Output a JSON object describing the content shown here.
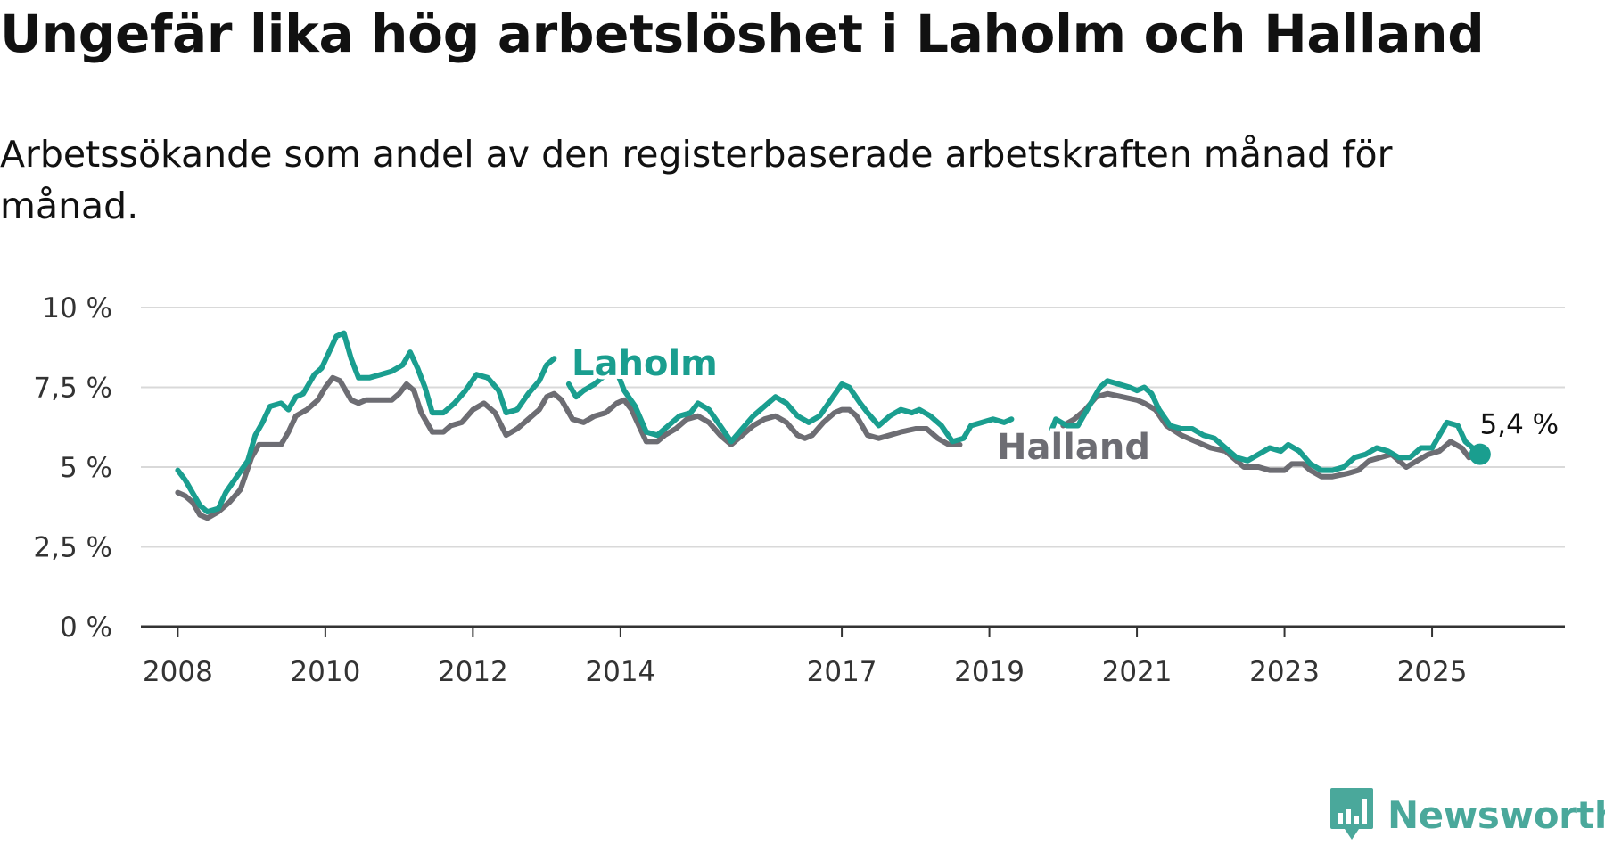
{
  "title": "Ungefär lika hög arbetslöshet i Laholm och Halland",
  "subtitle": "Arbetssökande som andel av den registerbaserade arbetskraften månad för månad.",
  "brand": {
    "name": "Newsworthy",
    "icon": "newsworthy-logo-icon",
    "color": "#4aa89b"
  },
  "chart_data": {
    "type": "line",
    "title": "Ungefär lika hög arbetslöshet i Laholm och Halland",
    "xlabel": "",
    "ylabel": "",
    "ylim": [
      0,
      10
    ],
    "xlim": [
      2007.5,
      2026.8
    ],
    "grid": true,
    "y_ticks": [
      {
        "value": 0,
        "label": "0 %"
      },
      {
        "value": 2.5,
        "label": "2,5 %"
      },
      {
        "value": 5,
        "label": "5 %"
      },
      {
        "value": 7.5,
        "label": "7,5 %"
      },
      {
        "value": 10,
        "label": "10 %"
      }
    ],
    "x_ticks": [
      {
        "value": 2008,
        "label": "2008"
      },
      {
        "value": 2010,
        "label": "2010"
      },
      {
        "value": 2012,
        "label": "2012"
      },
      {
        "value": 2014,
        "label": "2014"
      },
      {
        "value": 2017,
        "label": "2017"
      },
      {
        "value": 2019,
        "label": "2019"
      },
      {
        "value": 2021,
        "label": "2021"
      },
      {
        "value": 2023,
        "label": "2023"
      },
      {
        "value": 2025,
        "label": "2025"
      }
    ],
    "end_annotation": {
      "label": "5,4 %",
      "x": 2025.65,
      "y": 5.4
    },
    "series": [
      {
        "name": "Halland",
        "color": "#6d6d73",
        "label": "Halland",
        "points": [
          [
            2008.0,
            4.2
          ],
          [
            2008.1,
            4.1
          ],
          [
            2008.2,
            3.9
          ],
          [
            2008.3,
            3.5
          ],
          [
            2008.4,
            3.4
          ],
          [
            2008.55,
            3.6
          ],
          [
            2008.7,
            3.9
          ],
          [
            2008.85,
            4.3
          ],
          [
            2009.0,
            5.3
          ],
          [
            2009.1,
            5.7
          ],
          [
            2009.3,
            5.7
          ],
          [
            2009.4,
            5.7
          ],
          [
            2009.5,
            6.1
          ],
          [
            2009.6,
            6.6
          ],
          [
            2009.75,
            6.8
          ],
          [
            2009.9,
            7.1
          ],
          [
            2010.0,
            7.5
          ],
          [
            2010.1,
            7.8
          ],
          [
            2010.2,
            7.7
          ],
          [
            2010.35,
            7.1
          ],
          [
            2010.45,
            7.0
          ],
          [
            2010.55,
            7.1
          ],
          [
            2010.9,
            7.1
          ],
          [
            2011.0,
            7.3
          ],
          [
            2011.1,
            7.6
          ],
          [
            2011.2,
            7.4
          ],
          [
            2011.3,
            6.7
          ],
          [
            2011.45,
            6.1
          ],
          [
            2011.6,
            6.1
          ],
          [
            2011.7,
            6.3
          ],
          [
            2011.85,
            6.4
          ],
          [
            2012.0,
            6.8
          ],
          [
            2012.15,
            7.0
          ],
          [
            2012.3,
            6.7
          ],
          [
            2012.45,
            6.0
          ],
          [
            2012.6,
            6.2
          ],
          [
            2012.75,
            6.5
          ],
          [
            2012.9,
            6.8
          ],
          [
            2013.0,
            7.2
          ],
          [
            2013.1,
            7.3
          ],
          [
            2013.2,
            7.1
          ],
          [
            2013.35,
            6.5
          ],
          [
            2013.5,
            6.4
          ],
          [
            2013.65,
            6.6
          ],
          [
            2013.8,
            6.7
          ],
          [
            2013.95,
            7.0
          ],
          [
            2014.05,
            7.1
          ],
          [
            2014.15,
            6.8
          ],
          [
            2014.25,
            6.3
          ],
          [
            2014.35,
            5.8
          ],
          [
            2014.5,
            5.8
          ],
          [
            2014.6,
            6.0
          ],
          [
            2014.75,
            6.2
          ],
          [
            2014.9,
            6.5
          ],
          [
            2015.05,
            6.6
          ],
          [
            2015.2,
            6.4
          ],
          [
            2015.35,
            6.0
          ],
          [
            2015.5,
            5.7
          ],
          [
            2015.65,
            6.0
          ],
          [
            2015.8,
            6.3
          ],
          [
            2015.95,
            6.5
          ],
          [
            2016.1,
            6.6
          ],
          [
            2016.25,
            6.4
          ],
          [
            2016.4,
            6.0
          ],
          [
            2016.5,
            5.9
          ],
          [
            2016.6,
            6.0
          ],
          [
            2016.75,
            6.4
          ],
          [
            2016.9,
            6.7
          ],
          [
            2017.0,
            6.8
          ],
          [
            2017.1,
            6.8
          ],
          [
            2017.2,
            6.6
          ],
          [
            2017.35,
            6.0
          ],
          [
            2017.5,
            5.9
          ],
          [
            2017.65,
            6.0
          ],
          [
            2017.8,
            6.1
          ],
          [
            2018.0,
            6.2
          ],
          [
            2018.15,
            6.2
          ],
          [
            2018.3,
            5.9
          ],
          [
            2018.45,
            5.7
          ],
          [
            2018.6,
            5.7
          ]
        ]
      },
      {
        "name": "Laholm",
        "color": "#1a9e8f",
        "label": "Laholm",
        "points": [
          [
            2008.0,
            4.9
          ],
          [
            2008.1,
            4.6
          ],
          [
            2008.2,
            4.2
          ],
          [
            2008.3,
            3.8
          ],
          [
            2008.4,
            3.6
          ],
          [
            2008.55,
            3.7
          ],
          [
            2008.65,
            4.2
          ],
          [
            2008.8,
            4.7
          ],
          [
            2008.95,
            5.2
          ],
          [
            2009.05,
            6.0
          ],
          [
            2009.15,
            6.4
          ],
          [
            2009.25,
            6.9
          ],
          [
            2009.4,
            7.0
          ],
          [
            2009.5,
            6.8
          ],
          [
            2009.6,
            7.2
          ],
          [
            2009.7,
            7.3
          ],
          [
            2009.85,
            7.9
          ],
          [
            2009.95,
            8.1
          ],
          [
            2010.05,
            8.6
          ],
          [
            2010.15,
            9.1
          ],
          [
            2010.25,
            9.2
          ],
          [
            2010.35,
            8.4
          ],
          [
            2010.45,
            7.8
          ],
          [
            2010.6,
            7.8
          ],
          [
            2010.75,
            7.9
          ],
          [
            2010.9,
            8.0
          ],
          [
            2011.05,
            8.2
          ],
          [
            2011.15,
            8.6
          ],
          [
            2011.25,
            8.1
          ],
          [
            2011.35,
            7.5
          ],
          [
            2011.45,
            6.7
          ],
          [
            2011.6,
            6.7
          ],
          [
            2011.75,
            7.0
          ],
          [
            2011.9,
            7.4
          ],
          [
            2012.05,
            7.9
          ],
          [
            2012.2,
            7.8
          ],
          [
            2012.35,
            7.4
          ],
          [
            2012.45,
            6.7
          ],
          [
            2012.6,
            6.8
          ],
          [
            2012.75,
            7.3
          ],
          [
            2012.9,
            7.7
          ],
          [
            2013.0,
            8.2
          ],
          [
            2013.1,
            8.4
          ]
        ]
      },
      {
        "name": "Laholm",
        "color": "#1a9e8f",
        "label": "",
        "points": [
          [
            2013.3,
            7.6
          ],
          [
            2013.4,
            7.2
          ],
          [
            2013.5,
            7.4
          ],
          [
            2013.65,
            7.6
          ],
          [
            2013.8,
            7.9
          ]
        ]
      },
      {
        "name": "Laholm",
        "color": "#1a9e8f",
        "label": "",
        "points": [
          [
            2013.95,
            8.0
          ],
          [
            2014.05,
            7.4
          ],
          [
            2014.2,
            6.9
          ],
          [
            2014.35,
            6.1
          ],
          [
            2014.5,
            6.0
          ],
          [
            2014.65,
            6.3
          ],
          [
            2014.8,
            6.6
          ],
          [
            2014.95,
            6.7
          ],
          [
            2015.05,
            7.0
          ],
          [
            2015.2,
            6.8
          ],
          [
            2015.35,
            6.3
          ],
          [
            2015.5,
            5.8
          ],
          [
            2015.65,
            6.2
          ],
          [
            2015.8,
            6.6
          ],
          [
            2015.95,
            6.9
          ],
          [
            2016.1,
            7.2
          ],
          [
            2016.25,
            7.0
          ],
          [
            2016.4,
            6.6
          ],
          [
            2016.55,
            6.4
          ],
          [
            2016.7,
            6.6
          ],
          [
            2016.85,
            7.1
          ],
          [
            2017.0,
            7.6
          ],
          [
            2017.1,
            7.5
          ],
          [
            2017.25,
            7.0
          ],
          [
            2017.35,
            6.7
          ],
          [
            2017.5,
            6.3
          ],
          [
            2017.65,
            6.6
          ],
          [
            2017.8,
            6.8
          ],
          [
            2017.95,
            6.7
          ],
          [
            2018.05,
            6.8
          ],
          [
            2018.2,
            6.6
          ],
          [
            2018.35,
            6.3
          ],
          [
            2018.5,
            5.8
          ],
          [
            2018.65,
            5.9
          ],
          [
            2018.75,
            6.3
          ],
          [
            2018.9,
            6.4
          ],
          [
            2019.05,
            6.5
          ],
          [
            2019.2,
            6.4
          ],
          [
            2019.3,
            6.5
          ]
        ]
      },
      {
        "name": "Halland",
        "color": "#6d6d73",
        "label": "",
        "points": [
          [
            2020.0,
            6.3
          ],
          [
            2020.15,
            6.5
          ],
          [
            2020.3,
            6.8
          ],
          [
            2020.45,
            7.2
          ],
          [
            2020.6,
            7.3
          ],
          [
            2020.8,
            7.2
          ],
          [
            2021.0,
            7.1
          ],
          [
            2021.1,
            7.0
          ],
          [
            2021.25,
            6.8
          ],
          [
            2021.4,
            6.3
          ],
          [
            2021.6,
            6.0
          ],
          [
            2021.8,
            5.8
          ],
          [
            2022.0,
            5.6
          ],
          [
            2022.2,
            5.5
          ],
          [
            2022.3,
            5.3
          ],
          [
            2022.45,
            5.0
          ],
          [
            2022.65,
            5.0
          ],
          [
            2022.8,
            4.9
          ],
          [
            2023.0,
            4.9
          ],
          [
            2023.1,
            5.1
          ],
          [
            2023.25,
            5.1
          ],
          [
            2023.35,
            4.9
          ],
          [
            2023.5,
            4.7
          ],
          [
            2023.65,
            4.7
          ],
          [
            2023.85,
            4.8
          ],
          [
            2024.0,
            4.9
          ],
          [
            2024.15,
            5.2
          ],
          [
            2024.3,
            5.3
          ],
          [
            2024.45,
            5.4
          ],
          [
            2024.55,
            5.2
          ],
          [
            2024.65,
            5.0
          ],
          [
            2024.8,
            5.2
          ],
          [
            2024.95,
            5.4
          ],
          [
            2025.1,
            5.5
          ],
          [
            2025.25,
            5.8
          ],
          [
            2025.4,
            5.6
          ],
          [
            2025.5,
            5.3
          ],
          [
            2025.65,
            5.4
          ]
        ]
      },
      {
        "name": "Laholm",
        "color": "#1a9e8f",
        "label": "",
        "points": [
          [
            2019.85,
            6.2
          ],
          [
            2019.9,
            6.5
          ],
          [
            2020.05,
            6.3
          ],
          [
            2020.2,
            6.3
          ],
          [
            2020.35,
            6.9
          ],
          [
            2020.5,
            7.5
          ],
          [
            2020.6,
            7.7
          ],
          [
            2020.75,
            7.6
          ],
          [
            2020.9,
            7.5
          ],
          [
            2021.0,
            7.4
          ],
          [
            2021.1,
            7.5
          ],
          [
            2021.2,
            7.3
          ],
          [
            2021.3,
            6.8
          ],
          [
            2021.45,
            6.3
          ],
          [
            2021.6,
            6.2
          ],
          [
            2021.75,
            6.2
          ],
          [
            2021.9,
            6.0
          ],
          [
            2022.05,
            5.9
          ],
          [
            2022.2,
            5.6
          ],
          [
            2022.35,
            5.3
          ],
          [
            2022.5,
            5.2
          ],
          [
            2022.65,
            5.4
          ],
          [
            2022.8,
            5.6
          ],
          [
            2022.95,
            5.5
          ],
          [
            2023.05,
            5.7
          ],
          [
            2023.2,
            5.5
          ],
          [
            2023.35,
            5.1
          ],
          [
            2023.5,
            4.9
          ],
          [
            2023.65,
            4.9
          ],
          [
            2023.8,
            5.0
          ],
          [
            2023.95,
            5.3
          ],
          [
            2024.1,
            5.4
          ],
          [
            2024.25,
            5.6
          ],
          [
            2024.4,
            5.5
          ],
          [
            2024.55,
            5.3
          ],
          [
            2024.7,
            5.3
          ],
          [
            2024.85,
            5.6
          ],
          [
            2025.0,
            5.6
          ],
          [
            2025.1,
            6.0
          ],
          [
            2025.2,
            6.4
          ],
          [
            2025.35,
            6.3
          ],
          [
            2025.45,
            5.8
          ],
          [
            2025.6,
            5.5
          ],
          [
            2025.65,
            5.4
          ]
        ]
      }
    ]
  }
}
